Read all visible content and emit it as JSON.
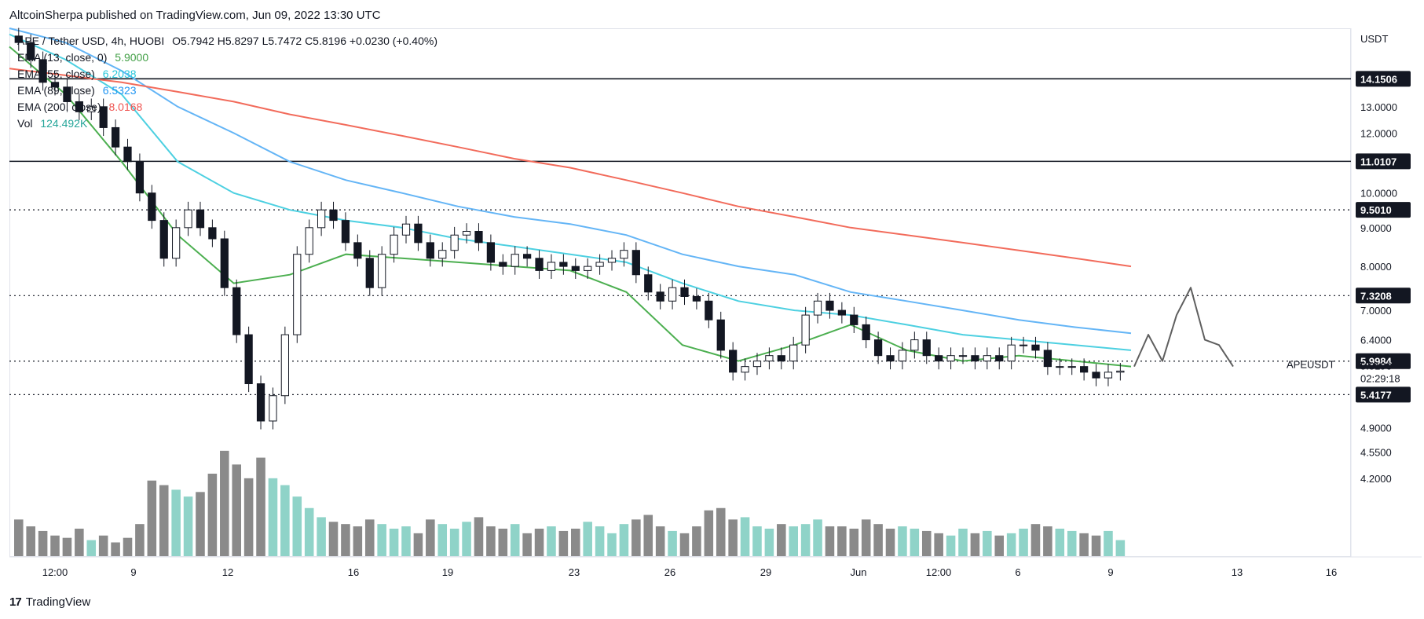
{
  "header": {
    "text": "AltcoinSherpa published on TradingView.com, Jun 09, 2022 13:30 UTC"
  },
  "footer": {
    "brand": "TradingView"
  },
  "legend": {
    "symbol_line": "APE / Tether USD, 4h, HUOBI",
    "ohlc": "O5.7942  H5.8297  L5.7472  C5.8196  +0.0230 (+0.40%)",
    "indicators": [
      {
        "label": "EMA (13, close, 0)",
        "value": "5.9000",
        "color": "#43a047"
      },
      {
        "label": "EMA (55, close)",
        "value": "6.2038",
        "color": "#26c6da"
      },
      {
        "label": "EMA (89, close)",
        "value": "6.5323",
        "color": "#2196f3"
      },
      {
        "label": "EMA (200, close)",
        "value": "8.0168",
        "color": "#ef5350"
      },
      {
        "label": "Vol",
        "value": "124.492K",
        "color": "#26a69a"
      }
    ]
  },
  "colors": {
    "ema13": "#4caf50",
    "ema55": "#4dd0e1",
    "ema89": "#64b5f6",
    "ema200": "#f26b5b",
    "vol_up": "#8fd3c8",
    "vol_down": "#8a8a8a",
    "candle_down": "#131722",
    "candle_up": "#ffffff",
    "forecast": "#5f5f5f"
  },
  "chart_data": {
    "type": "line",
    "title": "APE / Tether USD, 4h, HUOBI",
    "y_axis_unit": "USDT",
    "y_scale": "log",
    "ylim": [
      3.9,
      16.5
    ],
    "y_ticks": [
      "13.0000",
      "12.0000",
      "10.0000",
      "9.0000",
      "8.0000",
      "7.0000",
      "6.4000",
      "4.9000",
      "4.5500",
      "4.2000"
    ],
    "x_ticks": [
      "12:00",
      "9",
      "12",
      "16",
      "19",
      "23",
      "26",
      "29",
      "Jun",
      "12:00",
      "6",
      "9",
      "13",
      "16"
    ],
    "horizontal_levels": [
      {
        "value": 14.1506,
        "label": "14.1506",
        "style": "solid"
      },
      {
        "value": 11.0107,
        "label": "11.0107",
        "style": "solid"
      },
      {
        "value": 9.501,
        "label": "9.5010",
        "style": "dotted"
      },
      {
        "value": 7.3208,
        "label": "7.3208",
        "style": "dotted"
      },
      {
        "value": 5.9984,
        "label": "5.9984",
        "style": "dotted"
      },
      {
        "value": 5.4177,
        "label": "5.4177",
        "style": "dotted"
      }
    ],
    "last_price": {
      "value": "5.8196",
      "symbol": "APEUSDT",
      "countdown": "02:29:18"
    },
    "series": [
      {
        "name": "EMA (13, close, 0)",
        "values": [
          15.6,
          13.5,
          11.0,
          8.8,
          7.6,
          7.8,
          8.3,
          8.2,
          8.1,
          8.0,
          7.9,
          7.4,
          6.3,
          6.0,
          6.3,
          6.7,
          6.2,
          6.0,
          6.1,
          6.0,
          5.9
        ]
      },
      {
        "name": "EMA (55, close)",
        "values": [
          16.2,
          15.0,
          13.5,
          11.0,
          10.0,
          9.5,
          9.2,
          9.0,
          8.7,
          8.5,
          8.3,
          8.1,
          7.6,
          7.2,
          7.0,
          6.9,
          6.7,
          6.5,
          6.4,
          6.3,
          6.2
        ]
      },
      {
        "name": "EMA (89, close)",
        "values": [
          16.5,
          15.8,
          14.5,
          13.0,
          12.0,
          11.0,
          10.4,
          10.0,
          9.6,
          9.3,
          9.1,
          8.8,
          8.3,
          8.0,
          7.8,
          7.4,
          7.2,
          7.0,
          6.8,
          6.65,
          6.53
        ]
      },
      {
        "name": "EMA (200, close)",
        "values": [
          14.6,
          14.3,
          14.0,
          13.6,
          13.2,
          12.7,
          12.3,
          11.9,
          11.5,
          11.1,
          10.8,
          10.4,
          10.0,
          9.6,
          9.3,
          9.0,
          8.8,
          8.6,
          8.4,
          8.2,
          8.0
        ]
      }
    ],
    "candle_closes": [
      15.8,
      15.0,
      14.0,
      13.8,
      13.2,
      12.8,
      13.0,
      12.2,
      11.5,
      11.0,
      10.0,
      9.2,
      8.2,
      9.0,
      9.5,
      9.0,
      8.7,
      7.5,
      6.5,
      5.6,
      5.0,
      5.4,
      6.5,
      8.3,
      9.0,
      9.5,
      9.2,
      8.6,
      8.2,
      7.5,
      8.3,
      8.8,
      9.1,
      8.6,
      8.2,
      8.4,
      8.8,
      8.9,
      8.6,
      8.1,
      8.0,
      8.3,
      8.2,
      7.9,
      8.1,
      8.0,
      7.9,
      8.0,
      8.1,
      8.2,
      8.4,
      7.8,
      7.4,
      7.2,
      7.5,
      7.3,
      7.2,
      6.8,
      6.2,
      5.8,
      5.9,
      6.0,
      6.1,
      6.0,
      6.3,
      6.9,
      7.2,
      7.0,
      6.9,
      6.7,
      6.4,
      6.1,
      6.0,
      6.2,
      6.4,
      6.1,
      6.0,
      6.1,
      6.1,
      6.0,
      6.1,
      6.0,
      6.3,
      6.3,
      6.2,
      5.9,
      5.9,
      5.9,
      5.8,
      5.7,
      5.8,
      5.82
    ],
    "volume": [
      1.6,
      1.3,
      1.1,
      0.9,
      0.8,
      1.2,
      0.7,
      0.9,
      0.6,
      0.8,
      1.4,
      3.3,
      3.1,
      2.9,
      2.6,
      2.8,
      3.6,
      4.6,
      4.0,
      3.4,
      4.3,
      3.4,
      3.1,
      2.6,
      2.1,
      1.7,
      1.5,
      1.4,
      1.3,
      1.6,
      1.4,
      1.2,
      1.3,
      1.0,
      1.6,
      1.4,
      1.2,
      1.5,
      1.7,
      1.3,
      1.2,
      1.4,
      1.0,
      1.2,
      1.3,
      1.1,
      1.2,
      1.5,
      1.3,
      1.0,
      1.4,
      1.6,
      1.8,
      1.3,
      1.1,
      1.0,
      1.3,
      2.0,
      2.1,
      1.6,
      1.7,
      1.3,
      1.2,
      1.4,
      1.3,
      1.4,
      1.6,
      1.3,
      1.3,
      1.2,
      1.6,
      1.4,
      1.2,
      1.3,
      1.2,
      1.1,
      1.0,
      0.9,
      1.2,
      1.0,
      1.1,
      0.9,
      1.0,
      1.2,
      1.4,
      1.3,
      1.2,
      1.1,
      1.0,
      0.9,
      1.1,
      0.7
    ],
    "forecast_path": [
      5.9,
      6.5,
      6.0,
      6.9,
      7.5,
      6.4,
      6.3,
      5.9
    ]
  }
}
